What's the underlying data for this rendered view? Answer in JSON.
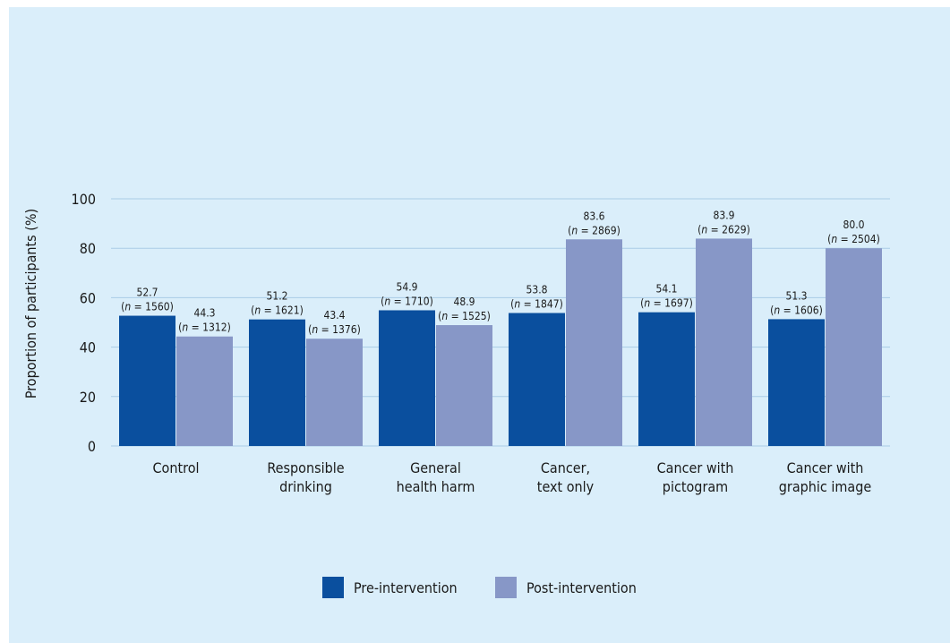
{
  "chart_data": {
    "type": "bar",
    "title": "",
    "xlabel": "",
    "ylabel": "Proportion of participants (%)",
    "ylim": [
      0,
      100
    ],
    "yticks": [
      0,
      20,
      40,
      60,
      80,
      100
    ],
    "grid": true,
    "legend_position": "bottom",
    "categories": [
      [
        "Control"
      ],
      [
        "Responsible",
        "drinking"
      ],
      [
        "General",
        "health harm"
      ],
      [
        "Cancer,",
        "text only"
      ],
      [
        "Cancer with",
        "pictogram"
      ],
      [
        "Cancer with",
        "graphic image"
      ]
    ],
    "series": [
      {
        "name": "Pre-intervention",
        "color": "#0a4f9e",
        "values": [
          52.7,
          51.2,
          54.9,
          53.8,
          54.1,
          51.3
        ],
        "value_labels": [
          "52.7",
          "51.2",
          "54.9",
          "53.8",
          "54.1",
          "51.3"
        ],
        "n_labels": [
          "(n = 1560)",
          "(n = 1621)",
          "(n = 1710)",
          "(n = 1847)",
          "(n = 1697)",
          "(n = 1606)"
        ]
      },
      {
        "name": "Post-intervention",
        "color": "#8797c7",
        "values": [
          44.3,
          43.4,
          48.9,
          83.6,
          83.9,
          80.0
        ],
        "value_labels": [
          "44.3",
          "43.4",
          "48.9",
          "83.6",
          "83.9",
          "80.0"
        ],
        "n_labels": [
          "(n = 1312)",
          "(n = 1376)",
          "(n = 1525)",
          "(n = 2869)",
          "(n = 2629)",
          "(n = 2504)"
        ]
      }
    ]
  },
  "colors": {
    "background": "#daeefa",
    "gridline": "#a9cce6",
    "text": "#1a1a1a"
  }
}
